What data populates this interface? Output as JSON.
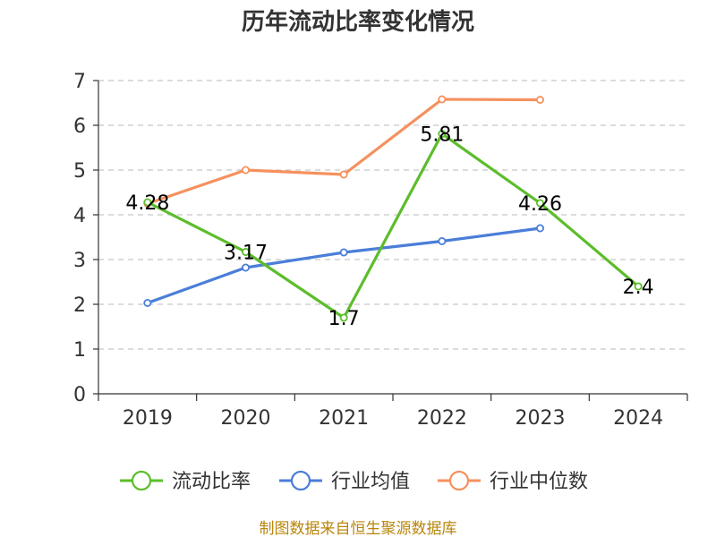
{
  "chart_data": {
    "type": "line",
    "title": "历年流动比率变化情况",
    "categories": [
      "2019",
      "2020",
      "2021",
      "2022",
      "2023",
      "2024"
    ],
    "ylim": [
      0,
      7
    ],
    "yticks": [
      0,
      1,
      2,
      3,
      4,
      5,
      6,
      7
    ],
    "grid": true,
    "legend_position": "bottom",
    "series": [
      {
        "name": "流动比率",
        "color": "#5cbd2b",
        "values": [
          4.28,
          3.17,
          1.7,
          5.81,
          4.26,
          2.4
        ],
        "labels": [
          "4.28",
          "3.17",
          "1.7",
          "5.81",
          "4.26",
          "2.4"
        ]
      },
      {
        "name": "行业均值",
        "color": "#4a7ed8",
        "values": [
          2.03,
          2.82,
          3.16,
          3.41,
          3.7,
          null
        ]
      },
      {
        "name": "行业中位数",
        "color": "#f5915e",
        "values": [
          4.25,
          5.0,
          4.9,
          6.58,
          6.57,
          null
        ]
      }
    ],
    "source_text": "制图数据来自恒生聚源数据库"
  }
}
